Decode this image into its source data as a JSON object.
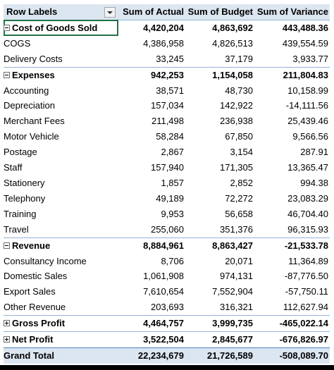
{
  "headers": {
    "row_labels": "Row Labels",
    "actual": "Sum of Actual",
    "budget": "Sum of Budget",
    "variance": "Sum of Variance"
  },
  "rows": [
    {
      "type": "group",
      "label": "Cost of Goods Sold",
      "actual": "4,420,204",
      "budget": "4,863,692",
      "variance": "443,488.36",
      "toggle": "minus",
      "selected": true
    },
    {
      "type": "item",
      "label": "COGS",
      "actual": "4,386,958",
      "budget": "4,826,513",
      "variance": "439,554.59"
    },
    {
      "type": "item",
      "label": "Delivery Costs",
      "actual": "33,245",
      "budget": "37,179",
      "variance": "3,933.77"
    },
    {
      "type": "group",
      "label": "Expenses",
      "actual": "942,253",
      "budget": "1,154,058",
      "variance": "211,804.83",
      "toggle": "minus"
    },
    {
      "type": "item",
      "label": "Accounting",
      "actual": "38,571",
      "budget": "48,730",
      "variance": "10,158.99"
    },
    {
      "type": "item",
      "label": "Depreciation",
      "actual": "157,034",
      "budget": "142,922",
      "variance": "-14,111.56"
    },
    {
      "type": "item",
      "label": "Merchant Fees",
      "actual": "211,498",
      "budget": "236,938",
      "variance": "25,439.46"
    },
    {
      "type": "item",
      "label": "Motor Vehicle",
      "actual": "58,284",
      "budget": "67,850",
      "variance": "9,566.56"
    },
    {
      "type": "item",
      "label": "Postage",
      "actual": "2,867",
      "budget": "3,154",
      "variance": "287.91"
    },
    {
      "type": "item",
      "label": "Staff",
      "actual": "157,940",
      "budget": "171,305",
      "variance": "13,365.47"
    },
    {
      "type": "item",
      "label": "Stationery",
      "actual": "1,857",
      "budget": "2,852",
      "variance": "994.38"
    },
    {
      "type": "item",
      "label": "Telephony",
      "actual": "49,189",
      "budget": "72,272",
      "variance": "23,083.29"
    },
    {
      "type": "item",
      "label": "Training",
      "actual": "9,953",
      "budget": "56,658",
      "variance": "46,704.40"
    },
    {
      "type": "item",
      "label": "Travel",
      "actual": "255,060",
      "budget": "351,376",
      "variance": "96,315.93"
    },
    {
      "type": "group",
      "label": "Revenue",
      "actual": "8,884,961",
      "budget": "8,863,427",
      "variance": "-21,533.78",
      "toggle": "minus"
    },
    {
      "type": "item",
      "label": "Consultancy Income",
      "actual": "8,706",
      "budget": "20,071",
      "variance": "11,364.89"
    },
    {
      "type": "item",
      "label": "Domestic Sales",
      "actual": "1,061,908",
      "budget": "974,131",
      "variance": "-87,776.50"
    },
    {
      "type": "item",
      "label": "Export Sales",
      "actual": "7,610,654",
      "budget": "7,552,904",
      "variance": "-57,750.11"
    },
    {
      "type": "item",
      "label": "Other Revenue",
      "actual": "203,693",
      "budget": "316,321",
      "variance": "112,627.94"
    },
    {
      "type": "group",
      "label": "Gross Profit",
      "actual": "4,464,757",
      "budget": "3,999,735",
      "variance": "-465,022.14",
      "toggle": "plus"
    },
    {
      "type": "group",
      "label": "Net Profit",
      "actual": "3,522,504",
      "budget": "2,845,677",
      "variance": "-676,826.97",
      "toggle": "plus"
    },
    {
      "type": "total",
      "label": "Grand Total",
      "actual": "22,234,679",
      "budget": "21,726,589",
      "variance": "-508,089.70"
    }
  ],
  "icons": {
    "filter": "filter-dropdown-icon",
    "expand": "expand-plus-icon",
    "collapse": "collapse-minus-icon"
  },
  "colors": {
    "header_bg": "#dce6f1",
    "border": "#95b3d7",
    "selection": "#217346"
  }
}
